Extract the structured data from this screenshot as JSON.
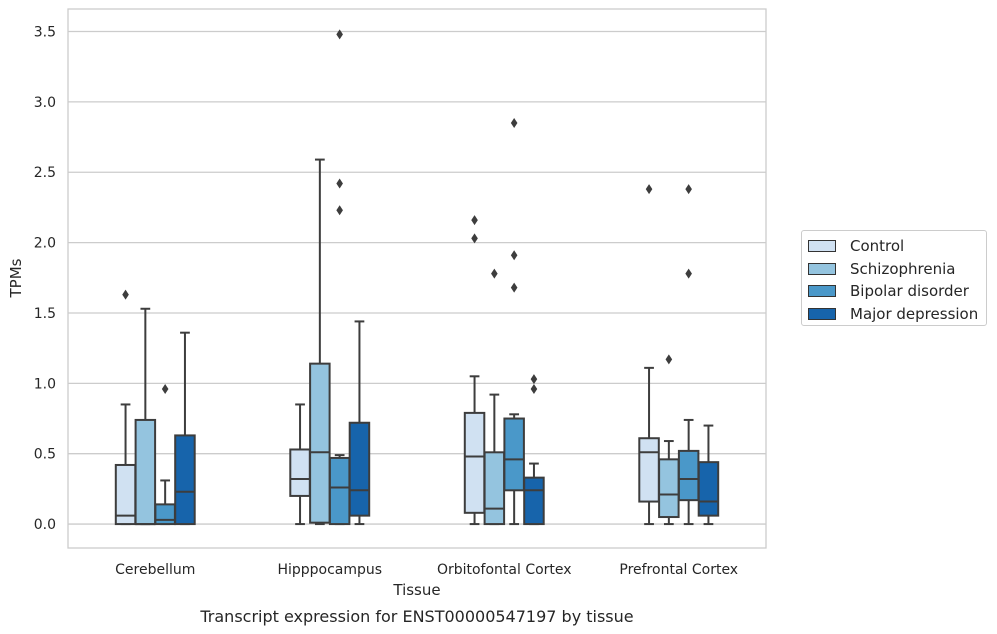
{
  "chart_data": {
    "type": "boxplot",
    "title": "Transcript expression for ENST00000547197 by tissue",
    "xlabel": "Tissue",
    "ylabel": "TPMs",
    "ylim": [
      -0.17,
      3.66
    ],
    "yticks": [
      "0.0",
      "0.5",
      "1.0",
      "1.5",
      "2.0",
      "2.5",
      "3.0",
      "3.5"
    ],
    "grid": true,
    "legend_placement": "right",
    "categories": [
      "Cerebellum",
      "Hipppocampus",
      "Orbitofontal Cortex",
      "Prefrontal Cortex"
    ],
    "series": [
      {
        "name": "Control",
        "color": "#d0e1f2",
        "boxes": [
          {
            "whisker_low": 0.0,
            "q1": 0.0,
            "median": 0.06,
            "q3": 0.42,
            "whisker_high": 0.85,
            "outliers": [
              1.63
            ]
          },
          {
            "whisker_low": 0.0,
            "q1": 0.2,
            "median": 0.32,
            "q3": 0.53,
            "whisker_high": 0.85,
            "outliers": []
          },
          {
            "whisker_low": 0.0,
            "q1": 0.08,
            "median": 0.48,
            "q3": 0.79,
            "whisker_high": 1.05,
            "outliers": [
              2.03,
              2.16
            ]
          },
          {
            "whisker_low": 0.0,
            "q1": 0.16,
            "median": 0.51,
            "q3": 0.61,
            "whisker_high": 1.11,
            "outliers": [
              2.38
            ]
          }
        ]
      },
      {
        "name": "Schizophrenia",
        "color": "#94c4df",
        "boxes": [
          {
            "whisker_low": 0.0,
            "q1": 0.0,
            "median": 0.0,
            "q3": 0.74,
            "whisker_high": 1.53,
            "outliers": []
          },
          {
            "whisker_low": 0.0,
            "q1": 0.01,
            "median": 0.51,
            "q3": 1.14,
            "whisker_high": 2.59,
            "outliers": []
          },
          {
            "whisker_low": 0.0,
            "q1": 0.0,
            "median": 0.11,
            "q3": 0.51,
            "whisker_high": 0.92,
            "outliers": [
              1.78
            ]
          },
          {
            "whisker_low": 0.0,
            "q1": 0.05,
            "median": 0.21,
            "q3": 0.46,
            "whisker_high": 0.59,
            "outliers": [
              1.17
            ]
          }
        ]
      },
      {
        "name": "Bipolar disorder",
        "color": "#4a98c9",
        "boxes": [
          {
            "whisker_low": 0.0,
            "q1": 0.0,
            "median": 0.03,
            "q3": 0.14,
            "whisker_high": 0.31,
            "outliers": [
              0.96
            ]
          },
          {
            "whisker_low": 0.0,
            "q1": 0.0,
            "median": 0.26,
            "q3": 0.47,
            "whisker_high": 0.49,
            "outliers": [
              2.23,
              2.42,
              3.48
            ]
          },
          {
            "whisker_low": 0.0,
            "q1": 0.24,
            "median": 0.46,
            "q3": 0.75,
            "whisker_high": 0.78,
            "outliers": [
              1.68,
              1.91,
              2.85
            ]
          },
          {
            "whisker_low": 0.0,
            "q1": 0.17,
            "median": 0.32,
            "q3": 0.52,
            "whisker_high": 0.74,
            "outliers": [
              1.78,
              2.38
            ]
          }
        ]
      },
      {
        "name": "Major depression",
        "color": "#1764ab",
        "boxes": [
          {
            "whisker_low": 0.0,
            "q1": 0.0,
            "median": 0.23,
            "q3": 0.63,
            "whisker_high": 1.36,
            "outliers": []
          },
          {
            "whisker_low": 0.0,
            "q1": 0.06,
            "median": 0.24,
            "q3": 0.72,
            "whisker_high": 1.44,
            "outliers": []
          },
          {
            "whisker_low": 0.0,
            "q1": 0.0,
            "median": 0.24,
            "q3": 0.33,
            "whisker_high": 0.43,
            "outliers": [
              0.96,
              1.03
            ]
          },
          {
            "whisker_low": 0.0,
            "q1": 0.06,
            "median": 0.16,
            "q3": 0.44,
            "whisker_high": 0.7,
            "outliers": []
          }
        ]
      }
    ]
  }
}
